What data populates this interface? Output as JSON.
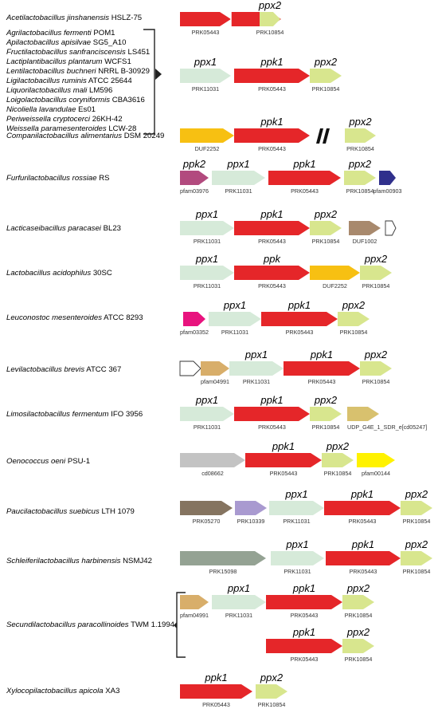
{
  "colors": {
    "ppk1": "#e52629",
    "ppx1": "#d6ead9",
    "ppx2": "#d8e68e",
    "ppk2": "#b24a7e",
    "DUF2252": "#f7c012",
    "pfam00903": "#30308c",
    "DUF1002": "#a8896d",
    "pfam03352": "#e8137e",
    "pfam04991": "#d8ae6a",
    "UDP_G4E": "#d8c16e",
    "cd08662": "#c3c3c3",
    "pfam00144": "#fff200",
    "PRK05270": "#857460",
    "PRK10339": "#a99ad0",
    "PRK15098": "#94a293",
    "empty": "#ffffff"
  },
  "species": [
    {
      "genus": "Acetilactobacillus jinshanensis",
      "strain": "HSLZ-75"
    },
    {
      "group": [
        {
          "genus": "Agrilactobacillus fermenti",
          "strain": "POM1"
        },
        {
          "genus": "Apilactobacillus apisilvae",
          "strain": "SG5_A10"
        },
        {
          "genus": "Fructilactobacillus sanfranciscensis",
          "strain": "LS451"
        },
        {
          "genus": "Lactiplantibacillus plantarum",
          "strain": "WCFS1"
        },
        {
          "genus": "Lentilactobacillus buchneri",
          "strain": "NRRL B-30929"
        },
        {
          "genus": "Ligilactobacillus ruminis",
          "strain": "ATCC 25644"
        },
        {
          "genus": "Liquorilactobacillus mali",
          "strain": "LM596"
        },
        {
          "genus": "Loigolactobacillus coryniformis",
          "strain": "CBA3616"
        },
        {
          "genus": "Nicoliella lavandulae",
          "strain": "Es01"
        },
        {
          "genus": "Periweissella cryptocerci",
          "strain": "26KH-42"
        },
        {
          "genus": "Weissella paramesenteroides",
          "strain": "LCW-28"
        }
      ]
    },
    {
      "genus": "Companilactobacillus alimentarius",
      "strain": "DSM 20249"
    },
    {
      "genus": "Furfurilactobacillus rossiae",
      "strain": "RS"
    },
    {
      "genus": "Lacticaseibacillus paracasei",
      "strain": "BL23"
    },
    {
      "genus": "Lactobacillus acidophilus",
      "strain": "30SC"
    },
    {
      "genus": "Leuconostoc mesenteroides",
      "strain": "ATCC 8293"
    },
    {
      "genus": "Levilactobacillus brevis",
      "strain": "ATCC 367"
    },
    {
      "genus": "Limosilactobacillus fermentum",
      "strain": "IFO 3956"
    },
    {
      "genus": "Oenococcus oeni",
      "strain": "PSU-1"
    },
    {
      "genus": "Paucilactobacillus suebicus",
      "strain": "LTH 1079"
    },
    {
      "genus": "Schleiferilactobacillus harbinensis",
      "strain": "NSMJ42"
    },
    {
      "genus": "Secundilactobacillus paracollinoides",
      "strain": "TWM 1.1994"
    },
    {
      "genus": "Xylocopilactobacillus apicola",
      "strain": "XA3"
    }
  ],
  "gene_names": {
    "ppk1": "ppk1",
    "ppk2": "ppk2",
    "ppk": "ppk",
    "ppx1": "ppx1",
    "ppx2": "ppx2"
  },
  "accessions": {
    "PRK05443": "PRK05443",
    "PRK10854": "PRK10854",
    "PRK11031": "PRK11031",
    "DUF2252": "DUF2252",
    "pfam03976": "pfam03976",
    "pfam00903": "pfam00903",
    "DUF1002": "DUF1002",
    "pfam03352": "pfam03352",
    "pfam04991": "pfam04991",
    "UDP": "UDP_G4E_1_SDR_e[cd05247]",
    "cd08662": "cd08662",
    "pfam00144": "pfam00144",
    "PRK05270": "PRK05270",
    "PRK10339": "PRK10339",
    "PRK15098": "PRK15098"
  }
}
